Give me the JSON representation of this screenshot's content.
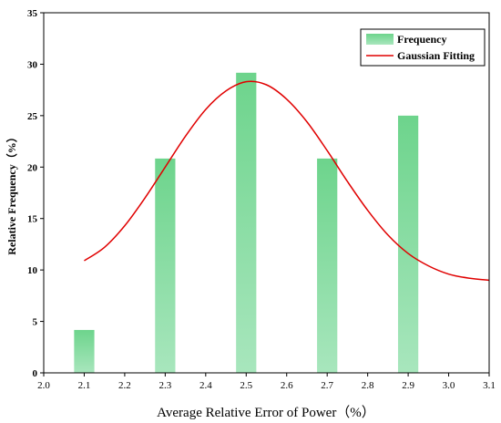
{
  "chart_data": {
    "type": "bar",
    "title": "",
    "xlabel": "Average Relative Error of Power（%）",
    "ylabel": "Relative Frequency（%）",
    "xlim": [
      2.0,
      3.1
    ],
    "ylim": [
      0,
      35
    ],
    "x_ticks": [
      "2.0",
      "2.1",
      "2.2",
      "2.3",
      "2.4",
      "2.5",
      "2.6",
      "2.7",
      "2.8",
      "2.9",
      "3.0",
      "3.1"
    ],
    "y_ticks": [
      "0",
      "5",
      "10",
      "15",
      "20",
      "25",
      "30",
      "35"
    ],
    "bar_width": 0.1,
    "categories": [
      2.1,
      2.3,
      2.5,
      2.7,
      2.9
    ],
    "values": [
      4.17,
      20.83,
      29.17,
      20.83,
      25.0
    ],
    "fit": {
      "name": "Gaussian Fitting",
      "points": [
        [
          2.1,
          10.9
        ],
        [
          2.15,
          12.2
        ],
        [
          2.2,
          14.3
        ],
        [
          2.25,
          17.0
        ],
        [
          2.3,
          20.0
        ],
        [
          2.35,
          23.0
        ],
        [
          2.4,
          25.6
        ],
        [
          2.45,
          27.4
        ],
        [
          2.5,
          28.3
        ],
        [
          2.55,
          28.0
        ],
        [
          2.6,
          26.6
        ],
        [
          2.65,
          24.4
        ],
        [
          2.7,
          21.6
        ],
        [
          2.75,
          18.6
        ],
        [
          2.8,
          15.8
        ],
        [
          2.85,
          13.4
        ],
        [
          2.9,
          11.6
        ],
        [
          2.95,
          10.4
        ],
        [
          3.0,
          9.6
        ],
        [
          3.05,
          9.2
        ],
        [
          3.1,
          9.0
        ]
      ],
      "color": "#e00000"
    },
    "bar_series_name": "Frequency",
    "bar_color_top": "#6dd48c",
    "bar_color_bottom": "#a8e6bd",
    "legend_position": "top-right",
    "grid": false
  }
}
